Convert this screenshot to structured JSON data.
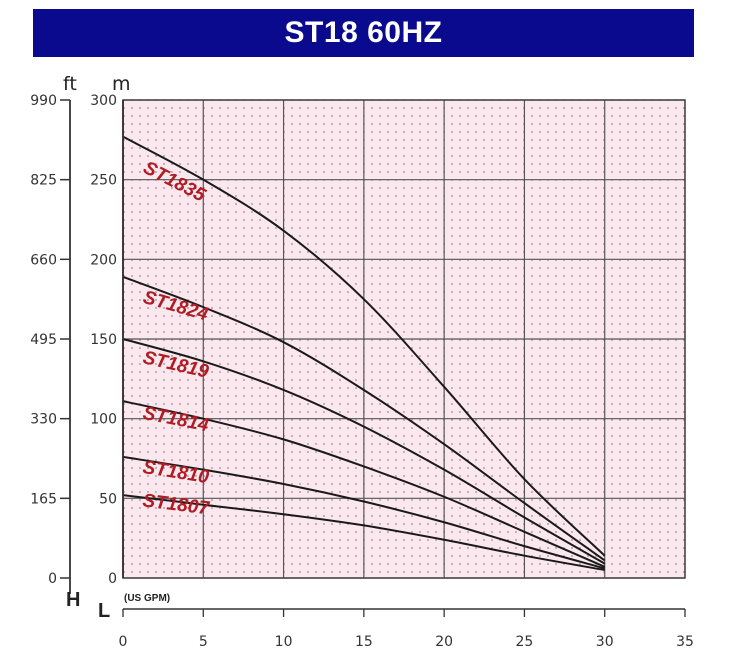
{
  "chart_data": {
    "type": "line",
    "title": "ST18 60HZ",
    "x_axis": {
      "label": "(US GPM)",
      "axis_letter": "L",
      "range": [
        0,
        35
      ],
      "ticks": [
        0,
        5,
        10,
        15,
        20,
        25,
        30,
        35
      ]
    },
    "y_axis_m": {
      "unit": "m",
      "range": [
        0,
        300
      ],
      "ticks": [
        0,
        50,
        100,
        150,
        200,
        250,
        300
      ]
    },
    "y_axis_ft": {
      "unit": "ft",
      "axis_letter": "H",
      "ticks": [
        0,
        165,
        330,
        495,
        660,
        825,
        990
      ]
    },
    "grid": true,
    "series": [
      {
        "name": "ST1835",
        "x": [
          0,
          5,
          10,
          15,
          20,
          25,
          30
        ],
        "y": [
          277,
          250,
          218,
          175,
          120,
          62,
          14
        ]
      },
      {
        "name": "ST1824",
        "x": [
          0,
          5,
          10,
          15,
          20,
          25,
          30
        ],
        "y": [
          189,
          170,
          148,
          118,
          84,
          47,
          11
        ]
      },
      {
        "name": "ST1819",
        "x": [
          0,
          5,
          10,
          15,
          20,
          25,
          30
        ],
        "y": [
          150,
          136,
          118,
          95,
          68,
          38,
          9
        ]
      },
      {
        "name": "ST1814",
        "x": [
          0,
          5,
          10,
          15,
          20,
          25,
          30
        ],
        "y": [
          111,
          100,
          87,
          70,
          51,
          29,
          7
        ]
      },
      {
        "name": "ST1810",
        "x": [
          0,
          5,
          10,
          15,
          20,
          25,
          30
        ],
        "y": [
          76,
          68,
          59,
          48,
          35,
          20,
          6
        ]
      },
      {
        "name": "ST1807",
        "x": [
          0,
          5,
          10,
          15,
          20,
          25,
          30
        ],
        "y": [
          52,
          46,
          40,
          33,
          24,
          14,
          5
        ]
      }
    ],
    "series_labels": [
      {
        "name": "ST1835",
        "at": [
          1,
          255
        ],
        "angle": 27
      },
      {
        "name": "ST1824",
        "at": [
          1,
          173
        ],
        "angle": 16
      },
      {
        "name": "ST1819",
        "at": [
          1,
          135
        ],
        "angle": 13
      },
      {
        "name": "ST1814",
        "at": [
          1,
          100
        ],
        "angle": 11
      },
      {
        "name": "ST1810",
        "at": [
          1,
          66
        ],
        "angle": 9
      },
      {
        "name": "ST1807",
        "at": [
          1,
          45
        ],
        "angle": 7
      }
    ],
    "colors": {
      "title_background": "#0a0a8f",
      "plot_background": "#fbe8ee",
      "curve": "#1a1a1a",
      "series_label": "#b01c24"
    }
  }
}
